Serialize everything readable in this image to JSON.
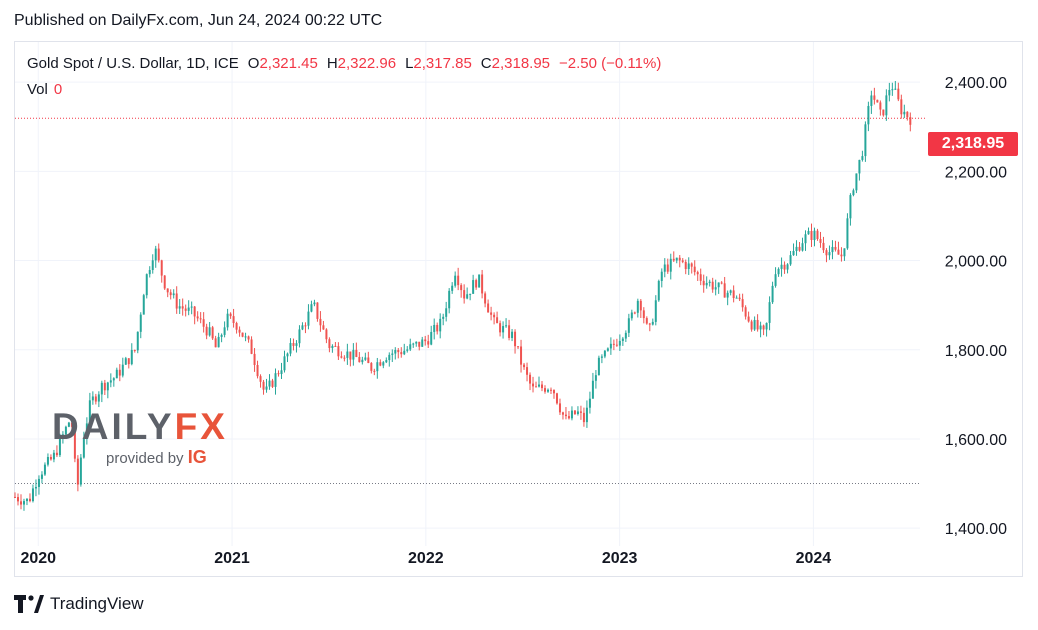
{
  "header": {
    "published": "Published on DailyFx.com, Jun 24, 2024 00:22 UTC"
  },
  "legend": {
    "symbol": "Gold Spot / U.S. Dollar, 1D, ICE",
    "open_label": "O",
    "open": "2,321.45",
    "high_label": "H",
    "high": "2,322.96",
    "low_label": "L",
    "low": "2,317.85",
    "close_label": "C",
    "close": "2,318.95",
    "change": "−2.50 (−0.11%)",
    "vol_label": "Vol",
    "vol": "0"
  },
  "watermark": {
    "brand_a": "DAILY",
    "brand_b": "FX",
    "provided": "provided by",
    "ig": "IG"
  },
  "last_price_label": "2,318.95",
  "footer": {
    "brand": "TradingView"
  },
  "colors": {
    "up": "#26a69a",
    "down": "#ef5350",
    "accent": "#f23645",
    "grid": "#f0f3fa",
    "text": "#131722"
  },
  "chart_data": {
    "type": "line",
    "title": "Gold Spot / U.S. Dollar, 1D, ICE",
    "candlestick": true,
    "x_ticks": [
      "2020",
      "2021",
      "2022",
      "2023",
      "2024"
    ],
    "y_ticks": [
      "1,400.00",
      "1,600.00",
      "1,800.00",
      "2,000.00",
      "2,200.00",
      "2,400.00"
    ],
    "ylim": [
      1360,
      2490
    ],
    "xlim": [
      2019.88,
      2024.55
    ],
    "last_price": 2318.95,
    "reference_level": 1500,
    "grid": true,
    "series": [
      {
        "values_note": "",
        "x": [
          2019.88,
          2019.95,
          2020.0,
          2020.08,
          2020.12,
          2020.17,
          2020.2,
          2020.23,
          2020.27,
          2020.33,
          2020.4,
          2020.45,
          2020.5,
          2020.55,
          2020.6,
          2020.63,
          2020.66,
          2020.72,
          2020.8,
          2020.88,
          2020.92,
          2020.97,
          2021.02,
          2021.1,
          2021.17,
          2021.25,
          2021.35,
          2021.42,
          2021.5,
          2021.55,
          2021.6,
          2021.65,
          2021.72,
          2021.8,
          2021.9,
          2022.0,
          2022.08,
          2022.15,
          2022.2,
          2022.27,
          2022.35,
          2022.45,
          2022.5,
          2022.55,
          2022.65,
          2022.72,
          2022.78,
          2022.82,
          2022.88,
          2022.95,
          2023.05,
          2023.1,
          2023.15,
          2023.22,
          2023.3,
          2023.35,
          2023.42,
          2023.5,
          2023.6,
          2023.68,
          2023.75,
          2023.8,
          2023.87,
          2023.95,
          2024.0,
          2024.08,
          2024.15,
          2024.2,
          2024.25,
          2024.3,
          2024.35,
          2024.4,
          2024.45,
          2024.5
        ],
        "values": [
          1470,
          1460,
          1520,
          1560,
          1600,
          1650,
          1480,
          1600,
          1680,
          1720,
          1740,
          1770,
          1800,
          1950,
          2030,
          1980,
          1940,
          1900,
          1880,
          1840,
          1800,
          1870,
          1860,
          1800,
          1700,
          1760,
          1840,
          1900,
          1810,
          1800,
          1790,
          1780,
          1760,
          1790,
          1800,
          1820,
          1860,
          1980,
          1920,
          1960,
          1860,
          1830,
          1760,
          1710,
          1720,
          1640,
          1660,
          1640,
          1760,
          1800,
          1860,
          1920,
          1830,
          1980,
          2000,
          1990,
          1960,
          1940,
          1920,
          1860,
          1830,
          1980,
          2000,
          2050,
          2060,
          2020,
          2010,
          2160,
          2240,
          2380,
          2320,
          2400,
          2340,
          2319
        ]
      }
    ]
  }
}
